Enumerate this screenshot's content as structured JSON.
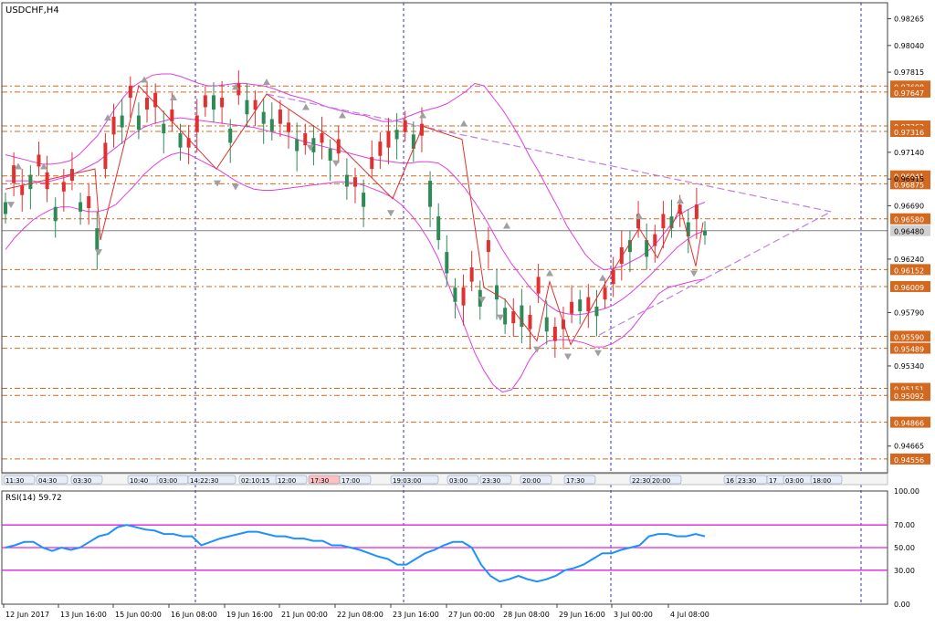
{
  "symbol_label": "USDCHF,H4",
  "rsi_label": "RSI(14) 59.72",
  "colors": {
    "bull": "#2e8b57",
    "bear": "#e03030",
    "bollinger": "#e040e0",
    "pattern": "#c080e0",
    "zigzag": "#e03030",
    "level": "#d2691e",
    "price_line": "#808080",
    "rsi": "#1e90ff",
    "rsi_levels": "#e020e0",
    "separator": "#3030d0",
    "axis": "#404040"
  },
  "chart_data": [
    {
      "type": "candlestick",
      "title": "USDCHF,H4",
      "ylim": [
        0.9444,
        0.984
      ],
      "y_ticks": [
        "0.98265",
        "0.98040",
        "0.97815",
        "0.97140",
        "0.96915",
        "0.96690",
        "0.96240",
        "0.95790",
        "0.95340",
        "0.94665"
      ],
      "levels": [
        "0.97698",
        "0.97647",
        "0.97362",
        "0.97316",
        "0.96941",
        "0.96875",
        "0.96580",
        "0.96152",
        "0.96009",
        "0.95590",
        "0.95489",
        "0.95151",
        "0.95092",
        "0.94866",
        "0.94556"
      ],
      "current_price": "0.96480",
      "x_time_labels": [
        "11:30",
        "04:30",
        "03:30",
        "10:40",
        "03:00",
        "14:22:30",
        "02:10:15",
        "12:00",
        "17:30",
        "17:00",
        "19:03:00",
        "03:00",
        "23:30",
        "20:00",
        "17:30",
        "22:30",
        "20:00",
        "16",
        "23:30",
        "17",
        "03:00",
        "18:00"
      ],
      "closes": [
        0.9672,
        0.9688,
        0.9678,
        0.9695,
        0.9702,
        0.9683,
        0.9668,
        0.9681,
        0.969,
        0.9672,
        0.9667,
        0.965,
        0.97,
        0.9729,
        0.9745,
        0.976,
        0.9745,
        0.975,
        0.9752,
        0.9738,
        0.974,
        0.973,
        0.9718,
        0.9731,
        0.9752,
        0.9762,
        0.9752,
        0.9734,
        0.9762,
        0.9758,
        0.975,
        0.9748,
        0.9742,
        0.9738,
        0.9731,
        0.9725,
        0.972,
        0.9726,
        0.9722,
        0.9717,
        0.9713,
        0.9695,
        0.9685,
        0.968,
        0.97,
        0.9711,
        0.9718,
        0.9733,
        0.9731,
        0.9729,
        0.9728,
        0.969,
        0.966,
        0.963,
        0.96,
        0.9585,
        0.9605,
        0.9598,
        0.963,
        0.9602,
        0.9583,
        0.957,
        0.9585,
        0.9565,
        0.9595,
        0.9575,
        0.9555,
        0.9565,
        0.9578,
        0.959,
        0.958,
        0.9584,
        0.959,
        0.9603,
        0.962,
        0.964,
        0.965,
        0.964,
        0.9635,
        0.965,
        0.966,
        0.9662,
        0.9655,
        0.9658,
        0.9648
      ],
      "open_offsets": [
        -0.001,
        0.0015,
        0.0008,
        -0.0012,
        0.001,
        0.0014,
        -0.0012,
        0.0008,
        0.001,
        -0.0008,
        0.001,
        -0.0018,
        0.0022,
        0.0015,
        -0.001,
        0.001,
        -0.0012,
        0.001,
        0.0012,
        -0.0008,
        0.001,
        -0.0012,
        0.0008,
        0.0014,
        0.001,
        -0.0012,
        0.0008,
        -0.0012,
        0.001,
        -0.0012,
        0.0008,
        -0.001,
        -0.001,
        0.0012,
        0.0008,
        -0.001,
        0.001,
        -0.0012,
        0.0008,
        -0.001,
        0.0012,
        -0.001,
        0.0008,
        -0.0012,
        0.001,
        0.0012,
        0.0014,
        -0.0008,
        0.001,
        -0.0012,
        0.001,
        -0.0022,
        -0.002,
        -0.0018,
        -0.0012,
        0.0015,
        0.0012,
        -0.0014,
        0.001,
        -0.0012,
        -0.0014,
        0.001,
        -0.0018,
        0.0012,
        0.0014,
        -0.0012,
        0.0012,
        0.0008,
        0.001,
        -0.001,
        0.0012,
        -0.0008,
        0.001,
        0.0012,
        0.0014,
        -0.001,
        0.0012,
        -0.0014,
        0.001,
        0.0012,
        -0.001,
        0.0008,
        -0.0012,
        0.0012,
        -0.0004
      ],
      "bollinger_upper": [
        0.9712,
        0.971,
        0.9708,
        0.9706,
        0.9704,
        0.9704,
        0.9705,
        0.9707,
        0.9712,
        0.972,
        0.9728,
        0.974,
        0.9752,
        0.9762,
        0.977,
        0.9775,
        0.9779,
        0.978,
        0.978,
        0.9778,
        0.9775,
        0.9772,
        0.977,
        0.977,
        0.9771,
        0.9772,
        0.9772,
        0.9771,
        0.977,
        0.9768,
        0.9765,
        0.9762,
        0.976,
        0.9758,
        0.9755,
        0.9752,
        0.975,
        0.9748,
        0.9746,
        0.9745,
        0.9742,
        0.974,
        0.974,
        0.9742,
        0.9745,
        0.9748,
        0.975,
        0.9752,
        0.9755,
        0.976,
        0.9765,
        0.9772,
        0.977,
        0.976,
        0.975,
        0.9738,
        0.9725,
        0.971,
        0.9697,
        0.9682,
        0.9668,
        0.9652,
        0.964,
        0.9628,
        0.962,
        0.9615,
        0.9616,
        0.9618,
        0.9622,
        0.9626,
        0.9632,
        0.964,
        0.965,
        0.966,
        0.9665,
        0.9669,
        0.9672
      ],
      "bollinger_middle": [
        0.969,
        0.969,
        0.969,
        0.969,
        0.9688,
        0.969,
        0.9692,
        0.9694,
        0.9698,
        0.9702,
        0.9706,
        0.9712,
        0.9718,
        0.9724,
        0.973,
        0.9735,
        0.9738,
        0.974,
        0.9742,
        0.9743,
        0.9742,
        0.9741,
        0.974,
        0.9739,
        0.9738,
        0.9737,
        0.9736,
        0.9735,
        0.9733,
        0.9731,
        0.9729,
        0.9727,
        0.9724,
        0.9722,
        0.972,
        0.9718,
        0.9716,
        0.9714,
        0.9712,
        0.971,
        0.9708,
        0.9707,
        0.9706,
        0.9705,
        0.9705,
        0.9706,
        0.9706,
        0.9705,
        0.97,
        0.9692,
        0.9683,
        0.9672,
        0.966,
        0.9646,
        0.9632,
        0.962,
        0.961,
        0.96,
        0.9592,
        0.9585,
        0.958,
        0.9578,
        0.9577,
        0.9578,
        0.958,
        0.9582,
        0.9585,
        0.959,
        0.9596,
        0.9603,
        0.961,
        0.9618,
        0.9626,
        0.9634,
        0.964,
        0.9645,
        0.9648
      ],
      "bollinger_lower": [
        0.9632,
        0.9642,
        0.965,
        0.9657,
        0.9662,
        0.9666,
        0.9668,
        0.9668,
        0.9666,
        0.9664,
        0.9664,
        0.9666,
        0.967,
        0.9678,
        0.9686,
        0.9695,
        0.9702,
        0.9708,
        0.9712,
        0.9714,
        0.9712,
        0.9708,
        0.9704,
        0.97,
        0.9695,
        0.969,
        0.9686,
        0.9683,
        0.9682,
        0.9682,
        0.9683,
        0.9684,
        0.9685,
        0.9686,
        0.9687,
        0.9688,
        0.9689,
        0.9689,
        0.9688,
        0.9686,
        0.9683,
        0.968,
        0.9676,
        0.967,
        0.9662,
        0.9652,
        0.964,
        0.9625,
        0.9605,
        0.9585,
        0.9565,
        0.9545,
        0.953,
        0.9518,
        0.9512,
        0.9514,
        0.9525,
        0.954,
        0.955,
        0.9555,
        0.9556,
        0.9556,
        0.9555,
        0.9553,
        0.955,
        0.955,
        0.9553,
        0.9558,
        0.9565,
        0.9575,
        0.9585,
        0.9595,
        0.96,
        0.9602,
        0.9604,
        0.9606,
        0.9607
      ],
      "rsi": {
        "label": "RSI(14) 59.72",
        "ylim": [
          0,
          100
        ],
        "y_ticks": [
          "100.00",
          "70.00",
          "50.00",
          "30.00",
          "0.00"
        ],
        "levels": [
          70,
          50,
          30
        ],
        "values": [
          50,
          52,
          55,
          55,
          50,
          47,
          50,
          48,
          50,
          55,
          60,
          62,
          68,
          70,
          68,
          66,
          65,
          62,
          62,
          60,
          60,
          52,
          55,
          58,
          60,
          62,
          64,
          64,
          62,
          60,
          60,
          58,
          58,
          56,
          56,
          52,
          52,
          50,
          48,
          45,
          42,
          40,
          35,
          35,
          40,
          45,
          48,
          52,
          55,
          55,
          50,
          35,
          25,
          20,
          22,
          25,
          22,
          20,
          22,
          25,
          30,
          32,
          35,
          40,
          45,
          45,
          48,
          50,
          52,
          60,
          62,
          62,
          60,
          60,
          62,
          60
        ],
        "last_value": "59.72"
      },
      "date_labels": [
        "12 Jun 2017",
        "13 Jun 16:00",
        "15 Jun 00:00",
        "16 Jun 08:00",
        "19 Jun 16:00",
        "21 Jun 00:00",
        "22 Jun 08:00",
        "23 Jun 16:00",
        "27 Jun 00:00",
        "28 Jun 08:00",
        "29 Jun 16:00",
        "3 Jul 00:00",
        "4 Jul 08:00"
      ]
    }
  ]
}
